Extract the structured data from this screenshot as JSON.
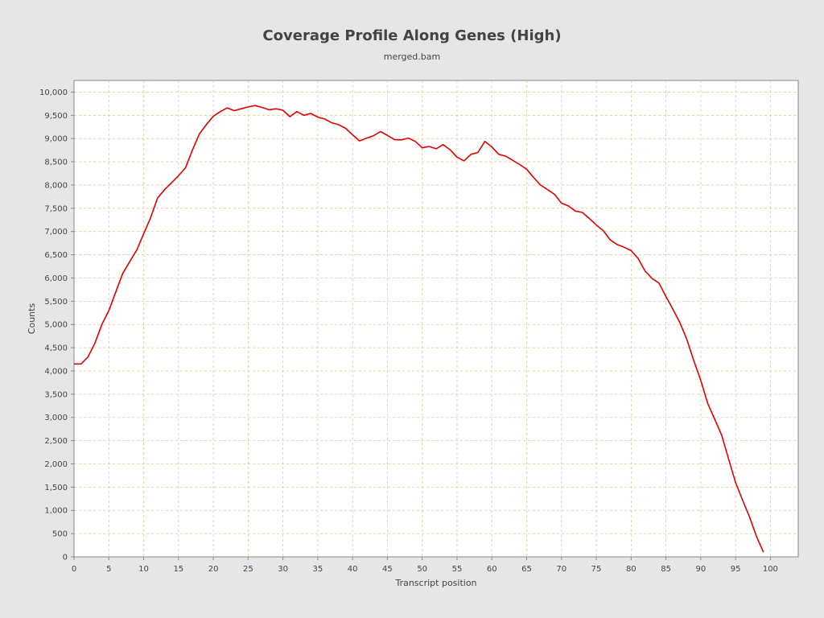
{
  "chart_data": {
    "type": "line",
    "title": "Coverage Profile Along Genes (High)",
    "subtitle": "merged.bam",
    "xlabel": "Transcript position",
    "ylabel": "Counts",
    "xlim": [
      0,
      104
    ],
    "ylim": [
      0,
      10250
    ],
    "xticks": [
      0,
      5,
      10,
      15,
      20,
      25,
      30,
      35,
      40,
      45,
      50,
      55,
      60,
      65,
      70,
      75,
      80,
      85,
      90,
      95,
      100
    ],
    "xtick_labels": [
      "0",
      "5",
      "10",
      "15",
      "20",
      "25",
      "30",
      "35",
      "40",
      "45",
      "50",
      "55",
      "60",
      "65",
      "70",
      "75",
      "80",
      "85",
      "90",
      "95",
      "100"
    ],
    "yticks": [
      0,
      500,
      1000,
      1500,
      2000,
      2500,
      3000,
      3500,
      4000,
      4500,
      5000,
      5500,
      6000,
      6500,
      7000,
      7500,
      8000,
      8500,
      9000,
      9500,
      10000
    ],
    "ytick_labels": [
      "0",
      "500",
      "1,000",
      "1,500",
      "2,000",
      "2,500",
      "3,000",
      "3,500",
      "4,000",
      "4,500",
      "5,000",
      "5,500",
      "6,000",
      "6,500",
      "7,000",
      "7,500",
      "8,000",
      "8,500",
      "9,000",
      "9,500",
      "10,000"
    ],
    "grid": true,
    "series": [
      {
        "color": "#e60000",
        "x": [
          0,
          1,
          2,
          3,
          4,
          5,
          6,
          7,
          8,
          9,
          10,
          11,
          12,
          13,
          14,
          15,
          16,
          17,
          18,
          19,
          20,
          21,
          22,
          23,
          24,
          25,
          26,
          27,
          28,
          29,
          30,
          31,
          32,
          33,
          34,
          35,
          36,
          37,
          38,
          39,
          40,
          41,
          42,
          43,
          44,
          45,
          46,
          47,
          48,
          49,
          50,
          51,
          52,
          53,
          54,
          55,
          56,
          57,
          58,
          59,
          60,
          61,
          62,
          63,
          64,
          65,
          66,
          67,
          68,
          69,
          70,
          71,
          72,
          73,
          74,
          75,
          76,
          77,
          78,
          79,
          80,
          81,
          82,
          83,
          84,
          85,
          86,
          87,
          88,
          89,
          90,
          91,
          92,
          93,
          94,
          95,
          96,
          97,
          98,
          99
        ],
        "y": [
          4150,
          4150,
          4300,
          4600,
          5000,
          5300,
          5700,
          6100,
          6350,
          6600,
          6950,
          7300,
          7720,
          7900,
          8050,
          8200,
          8370,
          8750,
          9100,
          9300,
          9480,
          9580,
          9660,
          9600,
          9640,
          9680,
          9710,
          9670,
          9620,
          9640,
          9610,
          9470,
          9580,
          9500,
          9540,
          9460,
          9420,
          9340,
          9300,
          9220,
          9080,
          8950,
          9010,
          9060,
          9150,
          9070,
          8980,
          8970,
          9010,
          8940,
          8800,
          8830,
          8780,
          8870,
          8760,
          8600,
          8520,
          8660,
          8700,
          8940,
          8820,
          8660,
          8620,
          8530,
          8440,
          8340,
          8160,
          8000,
          7900,
          7800,
          7610,
          7550,
          7440,
          7410,
          7280,
          7140,
          7020,
          6820,
          6720,
          6660,
          6590,
          6420,
          6150,
          5990,
          5890,
          5600,
          5330,
          5040,
          4680,
          4220,
          3800,
          3300,
          2960,
          2620,
          2100,
          1600,
          1220,
          860,
          440,
          100
        ]
      }
    ]
  }
}
